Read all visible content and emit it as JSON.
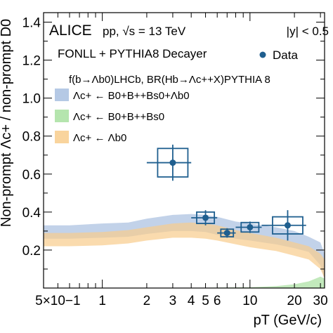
{
  "chart_data": {
    "type": "scatter",
    "title": "",
    "experiment": "ALICE",
    "system_label": "pp, √s = 13 TeV",
    "rapidity_label": "|y| < 0.5",
    "model_label": "FONLL + PYTHIA8 Decayer",
    "fraction_label": "f(b→Λb0)LHCb, BR(Hb→Λc++X)PYTHIA 8",
    "xlabel": "pT (GeV/c)",
    "ylabel": "Non-prompt Λc+ / non-prompt D0",
    "xscale": "log",
    "xlim": [
      0.4,
      32
    ],
    "ylim": [
      0.0,
      1.45
    ],
    "grid": false,
    "legend_position": "top-left",
    "x_tick_labels": [
      {
        "value": 0.5,
        "label": "5×10−1"
      },
      {
        "value": 1,
        "label": "1"
      },
      {
        "value": 2,
        "label": "2"
      },
      {
        "value": 3,
        "label": "3"
      },
      {
        "value": 4,
        "label": "4"
      },
      {
        "value": 5,
        "label": "5"
      },
      {
        "value": 6,
        "label": "6"
      },
      {
        "value": 10,
        "label": "10"
      },
      {
        "value": 20,
        "label": "20"
      },
      {
        "value": 30,
        "label": "30"
      }
    ],
    "y_tick_labels": [
      {
        "value": 0.2,
        "label": "0.2"
      },
      {
        "value": 0.4,
        "label": "0.4"
      },
      {
        "value": 0.6,
        "label": "0.6"
      },
      {
        "value": 0.8,
        "label": "0.8"
      },
      {
        "value": 1.0,
        "label": "1.0"
      },
      {
        "value": 1.2,
        "label": "1.2"
      },
      {
        "value": 1.4,
        "label": "1.4"
      }
    ],
    "bands": [
      {
        "name": "Λc+ ← B0+B++Bs0+Λb0",
        "color": "#a8bfe0",
        "x": [
          0.4,
          0.6,
          1,
          1.5,
          2,
          3,
          4,
          5,
          6,
          8,
          10,
          15,
          20,
          25,
          30,
          32
        ],
        "low": [
          0.26,
          0.26,
          0.265,
          0.27,
          0.285,
          0.3,
          0.3,
          0.295,
          0.28,
          0.26,
          0.25,
          0.23,
          0.21,
          0.19,
          0.12,
          0.05
        ],
        "high": [
          0.33,
          0.33,
          0.34,
          0.345,
          0.365,
          0.385,
          0.39,
          0.385,
          0.375,
          0.35,
          0.34,
          0.32,
          0.3,
          0.27,
          0.24,
          0.18
        ]
      },
      {
        "name": "Λc+ ← Λb0",
        "color": "#f8cc8c",
        "x": [
          0.4,
          0.6,
          1,
          1.5,
          2,
          3,
          4,
          5,
          6,
          8,
          10,
          15,
          20,
          25,
          30,
          32
        ],
        "low": [
          0.22,
          0.22,
          0.225,
          0.235,
          0.25,
          0.265,
          0.265,
          0.26,
          0.25,
          0.23,
          0.215,
          0.195,
          0.17,
          0.15,
          0.1,
          0.05
        ],
        "high": [
          0.29,
          0.29,
          0.295,
          0.305,
          0.32,
          0.34,
          0.345,
          0.34,
          0.33,
          0.305,
          0.29,
          0.265,
          0.24,
          0.22,
          0.18,
          0.15
        ]
      },
      {
        "name": "Λc+ ← B0+B++Bs0",
        "color": "#a8e0a0",
        "x": [
          0.4,
          5,
          10,
          15,
          20,
          25,
          30,
          32
        ],
        "low": [
          0.0,
          0.0,
          0.0,
          0.0,
          0.0,
          0.0,
          0.0,
          0.0
        ],
        "high": [
          0.002,
          0.002,
          0.004,
          0.01,
          0.02,
          0.035,
          0.06,
          0.05
        ]
      }
    ],
    "series": [
      {
        "name": "Data",
        "color": "#1f5f8f",
        "points": [
          {
            "x": 3.0,
            "y": 0.66,
            "x_low": 2.0,
            "x_high": 4.0,
            "stat": 0.095,
            "syst": 0.075
          },
          {
            "x": 5.0,
            "y": 0.37,
            "x_low": 4.0,
            "x_high": 6.0,
            "stat": 0.04,
            "syst": 0.03
          },
          {
            "x": 7.0,
            "y": 0.29,
            "x_low": 6.0,
            "x_high": 8.0,
            "stat": 0.025,
            "syst": 0.02
          },
          {
            "x": 10.0,
            "y": 0.32,
            "x_low": 8.0,
            "x_high": 12.0,
            "stat": 0.03,
            "syst": 0.025
          },
          {
            "x": 18.0,
            "y": 0.33,
            "x_low": 12.0,
            "x_high": 24.0,
            "stat": 0.08,
            "syst": 0.045
          }
        ]
      }
    ]
  }
}
